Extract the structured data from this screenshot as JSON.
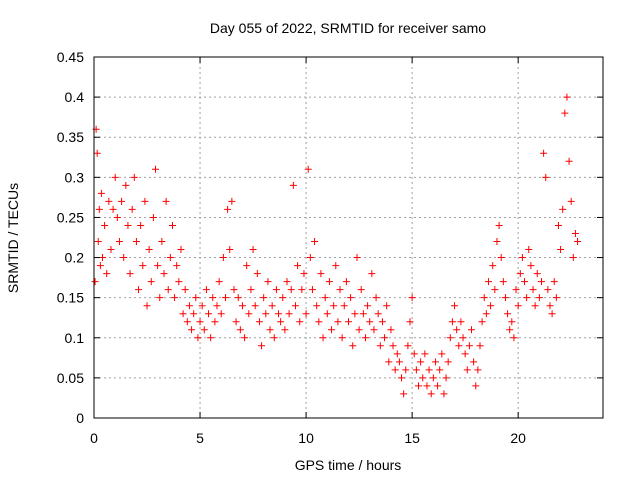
{
  "chart_data": {
    "type": "scatter",
    "title": "Day 055 of 2022, SRMTID for receiver samo",
    "xlabel": "GPS time / hours",
    "ylabel": "SRMTID / TECUs",
    "xlim": [
      0,
      24
    ],
    "ylim": [
      0,
      0.45
    ],
    "x_ticks": [
      0,
      5,
      10,
      15,
      20
    ],
    "x_tick_labels": [
      "0",
      "5",
      "10",
      "15",
      "20"
    ],
    "y_ticks": [
      0,
      0.05,
      0.1,
      0.15,
      0.2,
      0.25,
      0.3,
      0.35,
      0.4,
      0.45
    ],
    "y_tick_labels": [
      "0",
      "0.05",
      "0.1",
      "0.15",
      "0.2",
      "0.25",
      "0.3",
      "0.35",
      "0.4",
      "0.45"
    ],
    "grid": true,
    "marker": "plus",
    "color": "#ff0000",
    "series": [
      {
        "name": "SRMTID",
        "x": [
          0.05,
          0.1,
          0.15,
          0.2,
          0.25,
          0.3,
          0.35,
          0.4,
          0.5,
          0.6,
          0.7,
          0.8,
          0.9,
          1.0,
          1.1,
          1.2,
          1.3,
          1.4,
          1.5,
          1.6,
          1.7,
          1.8,
          1.9,
          2.0,
          2.1,
          2.2,
          2.3,
          2.4,
          2.5,
          2.6,
          2.7,
          2.8,
          2.9,
          3.0,
          3.1,
          3.2,
          3.3,
          3.4,
          3.5,
          3.6,
          3.7,
          3.8,
          3.9,
          4.0,
          4.1,
          4.2,
          4.3,
          4.4,
          4.5,
          4.6,
          4.7,
          4.8,
          4.9,
          5.0,
          5.1,
          5.2,
          5.3,
          5.4,
          5.5,
          5.6,
          5.7,
          5.8,
          5.9,
          6.0,
          6.1,
          6.2,
          6.3,
          6.4,
          6.5,
          6.6,
          6.7,
          6.8,
          6.9,
          7.0,
          7.1,
          7.2,
          7.3,
          7.4,
          7.5,
          7.6,
          7.7,
          7.8,
          7.9,
          8.0,
          8.1,
          8.2,
          8.3,
          8.4,
          8.5,
          8.6,
          8.7,
          8.8,
          8.9,
          9.0,
          9.1,
          9.2,
          9.3,
          9.4,
          9.5,
          9.6,
          9.7,
          9.8,
          9.9,
          10.0,
          10.1,
          10.2,
          10.3,
          10.4,
          10.5,
          10.6,
          10.7,
          10.8,
          10.9,
          11.0,
          11.1,
          11.2,
          11.3,
          11.4,
          11.5,
          11.6,
          11.7,
          11.8,
          11.9,
          12.0,
          12.1,
          12.2,
          12.3,
          12.4,
          12.5,
          12.6,
          12.7,
          12.8,
          12.9,
          13.0,
          13.1,
          13.2,
          13.3,
          13.4,
          13.5,
          13.6,
          13.7,
          13.8,
          13.9,
          14.0,
          14.1,
          14.2,
          14.3,
          14.4,
          14.5,
          14.6,
          14.7,
          14.8,
          14.9,
          15.0,
          15.1,
          15.2,
          15.3,
          15.4,
          15.5,
          15.6,
          15.7,
          15.8,
          15.9,
          16.0,
          16.1,
          16.2,
          16.3,
          16.4,
          16.5,
          16.6,
          16.7,
          16.8,
          16.9,
          17.0,
          17.1,
          17.2,
          17.3,
          17.4,
          17.5,
          17.6,
          17.7,
          17.8,
          17.9,
          18.0,
          18.1,
          18.2,
          18.3,
          18.4,
          18.5,
          18.6,
          18.7,
          18.8,
          18.9,
          19.0,
          19.1,
          19.2,
          19.3,
          19.4,
          19.5,
          19.6,
          19.7,
          19.8,
          19.9,
          20.0,
          20.1,
          20.2,
          20.3,
          20.4,
          20.5,
          20.6,
          20.7,
          20.8,
          20.9,
          21.0,
          21.1,
          21.2,
          21.3,
          21.4,
          21.5,
          21.6,
          21.7,
          21.8,
          21.9,
          22.0,
          22.1,
          22.2,
          22.3,
          22.4,
          22.5,
          22.6,
          22.7,
          22.8
        ],
        "y": [
          0.17,
          0.36,
          0.33,
          0.22,
          0.26,
          0.19,
          0.28,
          0.2,
          0.24,
          0.18,
          0.27,
          0.21,
          0.26,
          0.3,
          0.25,
          0.22,
          0.27,
          0.2,
          0.29,
          0.24,
          0.18,
          0.26,
          0.3,
          0.22,
          0.16,
          0.24,
          0.19,
          0.27,
          0.14,
          0.21,
          0.17,
          0.25,
          0.31,
          0.19,
          0.15,
          0.22,
          0.18,
          0.27,
          0.16,
          0.2,
          0.24,
          0.15,
          0.19,
          0.17,
          0.21,
          0.13,
          0.16,
          0.12,
          0.14,
          0.11,
          0.13,
          0.15,
          0.1,
          0.12,
          0.14,
          0.11,
          0.16,
          0.13,
          0.1,
          0.15,
          0.12,
          0.14,
          0.17,
          0.13,
          0.2,
          0.15,
          0.26,
          0.21,
          0.27,
          0.16,
          0.12,
          0.15,
          0.11,
          0.14,
          0.1,
          0.19,
          0.13,
          0.16,
          0.21,
          0.14,
          0.18,
          0.12,
          0.09,
          0.15,
          0.13,
          0.17,
          0.11,
          0.14,
          0.1,
          0.16,
          0.13,
          0.12,
          0.15,
          0.11,
          0.17,
          0.13,
          0.16,
          0.29,
          0.14,
          0.19,
          0.12,
          0.16,
          0.18,
          0.13,
          0.31,
          0.2,
          0.16,
          0.22,
          0.14,
          0.12,
          0.18,
          0.1,
          0.15,
          0.13,
          0.17,
          0.11,
          0.14,
          0.19,
          0.12,
          0.16,
          0.1,
          0.14,
          0.17,
          0.12,
          0.15,
          0.09,
          0.13,
          0.2,
          0.11,
          0.16,
          0.13,
          0.1,
          0.14,
          0.12,
          0.18,
          0.11,
          0.15,
          0.13,
          0.09,
          0.12,
          0.1,
          0.14,
          0.07,
          0.11,
          0.09,
          0.06,
          0.08,
          0.07,
          0.05,
          0.03,
          0.06,
          0.09,
          0.12,
          0.15,
          0.08,
          0.06,
          0.04,
          0.07,
          0.05,
          0.08,
          0.04,
          0.06,
          0.03,
          0.05,
          0.07,
          0.04,
          0.06,
          0.08,
          0.03,
          0.05,
          0.07,
          0.1,
          0.12,
          0.14,
          0.11,
          0.09,
          0.12,
          0.1,
          0.08,
          0.06,
          0.09,
          0.11,
          0.07,
          0.04,
          0.06,
          0.09,
          0.12,
          0.15,
          0.13,
          0.17,
          0.14,
          0.19,
          0.16,
          0.22,
          0.24,
          0.2,
          0.17,
          0.15,
          0.13,
          0.11,
          0.12,
          0.1,
          0.16,
          0.14,
          0.18,
          0.2,
          0.17,
          0.15,
          0.21,
          0.19,
          0.16,
          0.14,
          0.18,
          0.15,
          0.17,
          0.33,
          0.3,
          0.16,
          0.14,
          0.13,
          0.17,
          0.15,
          0.24,
          0.21,
          0.26,
          0.38,
          0.4,
          0.32,
          0.27,
          0.2,
          0.23,
          0.22
        ]
      }
    ]
  }
}
